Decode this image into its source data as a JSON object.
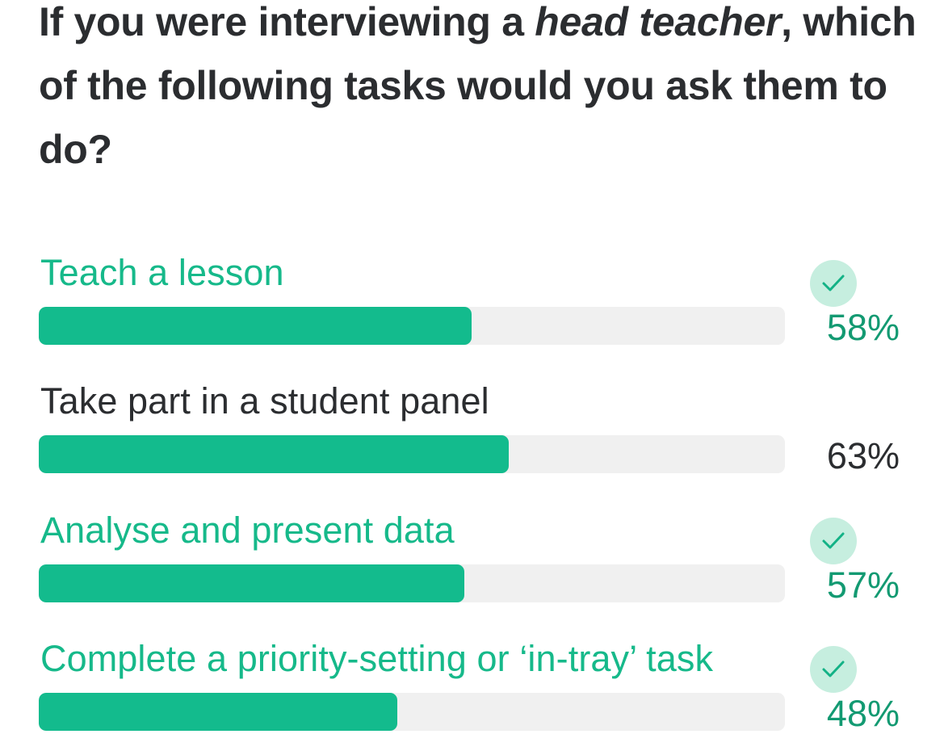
{
  "question": {
    "before": "If you were interviewing a ",
    "emphasis": "head teacher",
    "after": ", which of the following tasks would you ask them to do?"
  },
  "options": [
    {
      "label": "Teach a lesson",
      "percent": 58,
      "percent_label": "58%",
      "correct": true
    },
    {
      "label": "Take part in a student panel",
      "percent": 63,
      "percent_label": "63%",
      "correct": false
    },
    {
      "label": "Analyse and present data",
      "percent": 57,
      "percent_label": "57%",
      "correct": true
    },
    {
      "label": "Complete a priority-setting or ‘in-tray’ task",
      "percent": 48,
      "percent_label": "48%",
      "correct": true
    }
  ],
  "colors": {
    "correct_text": "#16b98a",
    "bar_fill": "#13bb8d",
    "bar_track": "#f0f0f0",
    "check_bg": "#c6eedf",
    "check_mark": "#13b286"
  },
  "icons": {
    "correct_marker": "checkmark-icon"
  }
}
